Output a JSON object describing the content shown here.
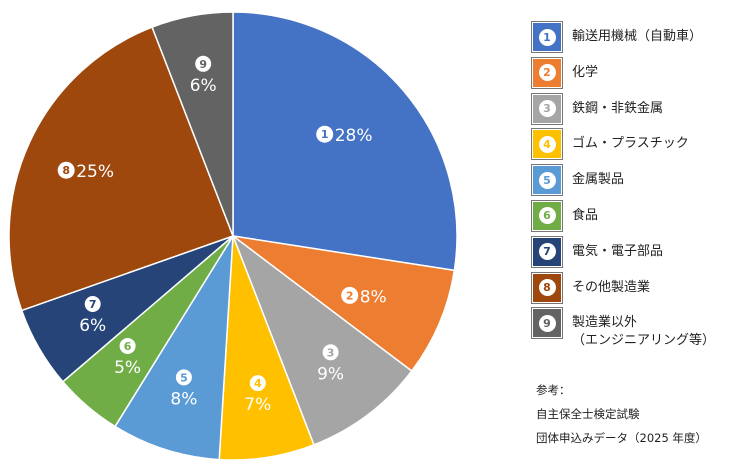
{
  "chart_data": {
    "type": "pie",
    "title": "",
    "categories": [
      "輸送用機械（自動車）",
      "化学",
      "鉄鋼・非鉄金属",
      "ゴム・プラスチック",
      "金属製品",
      "食品",
      "電気・電子部品",
      "その他製造業",
      "製造業以外\n（エンジニアリング等）"
    ],
    "markers": [
      "1",
      "2",
      "3",
      "4",
      "5",
      "6",
      "7",
      "8",
      "9"
    ],
    "values": [
      28,
      8,
      9,
      7,
      8,
      5,
      6,
      25,
      6
    ],
    "data_labels": [
      "28%",
      "8%",
      "9%",
      "7%",
      "8%",
      "5%",
      "6%",
      "25%",
      "6%"
    ],
    "colors": [
      "#4472C4",
      "#ED7D31",
      "#A5A5A5",
      "#FFC000",
      "#5B9BD5",
      "#70AD47",
      "#264478",
      "#9E480E",
      "#636363"
    ],
    "legend_position": "right",
    "start_position": "top",
    "direction": "clockwise"
  },
  "note": {
    "heading": "参考：",
    "line1": "自主保全士検定試験",
    "line2": "団体申込みデータ（2025 年度）"
  }
}
